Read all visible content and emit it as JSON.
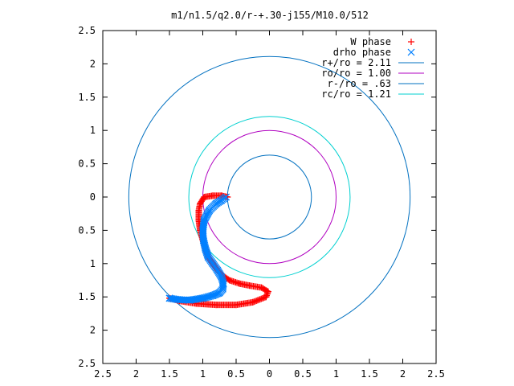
{
  "chart_data": {
    "type": "scatter",
    "title": "m1/n1.5/q2.0/r-+.30-j155/M10.0/512",
    "xlabel": "",
    "ylabel": "",
    "xlim": [
      -2.5,
      2.5
    ],
    "ylim": [
      -2.5,
      2.5
    ],
    "x_ticks": [
      -2.5,
      -2,
      -1.5,
      -1,
      -0.5,
      0,
      0.5,
      1,
      1.5,
      2,
      2.5
    ],
    "y_ticks": [
      -2.5,
      -2,
      -1.5,
      -1,
      -0.5,
      0,
      0.5,
      1,
      1.5,
      2,
      2.5
    ],
    "x_tick_labels": [
      "2.5",
      "2",
      "1.5",
      "1",
      "0.5",
      "0",
      "0.5",
      "1",
      "1.5",
      "2",
      "2.5"
    ],
    "y_tick_labels": [
      "2.5",
      "2",
      "1.5",
      "1",
      "0.5",
      "0",
      "0.5",
      "1",
      "1.5",
      "2",
      "2.5"
    ],
    "grid": false,
    "legend_position": "top-right",
    "legend": [
      {
        "label": "W phase",
        "kind": "plus",
        "color": "#ff0000"
      },
      {
        "label": "drho phase",
        "kind": "cross",
        "color": "#0080ff"
      },
      {
        "label": "r+/ro = 2.11",
        "kind": "line",
        "color": "#0070c0"
      },
      {
        "label": "ro/ro = 1.00",
        "kind": "line",
        "color": "#b000c0"
      },
      {
        "label": "r-/ro = .63",
        "kind": "line",
        "color": "#0070c0"
      },
      {
        "label": "rc/ro = 1.21",
        "kind": "line",
        "color": "#00d0d0"
      }
    ],
    "circles": [
      {
        "name": "r+/ro",
        "r": 2.11,
        "color": "#0070c0"
      },
      {
        "name": "ro/ro",
        "r": 1.0,
        "color": "#b000c0"
      },
      {
        "name": "r-/ro",
        "r": 0.63,
        "color": "#0070c0"
      },
      {
        "name": "rc/ro",
        "r": 1.21,
        "color": "#00d0d0"
      }
    ],
    "series": [
      {
        "name": "W phase",
        "marker": "plus",
        "color": "#ff0000",
        "x": [
          -0.63,
          -0.72,
          -0.85,
          -0.98,
          -1.04,
          -1.06,
          -1.06,
          -1.04,
          -1.0,
          -0.96,
          -0.92,
          -0.85,
          -0.78,
          -0.7,
          -0.6,
          -0.45,
          -0.3,
          -0.12,
          -0.02,
          -0.05,
          -0.25,
          -0.5,
          -0.8,
          -1.1,
          -1.35,
          -1.5
        ],
        "y": [
          0.0,
          0.02,
          0.02,
          0.0,
          -0.1,
          -0.2,
          -0.35,
          -0.5,
          -0.65,
          -0.78,
          -0.9,
          -1.0,
          -1.1,
          -1.18,
          -1.25,
          -1.3,
          -1.33,
          -1.36,
          -1.42,
          -1.5,
          -1.58,
          -1.62,
          -1.62,
          -1.6,
          -1.56,
          -1.52
        ]
      },
      {
        "name": "drho phase",
        "marker": "cross",
        "color": "#0080ff",
        "x": [
          -0.65,
          -0.72,
          -0.8,
          -0.9,
          -0.98,
          -1.0,
          -0.99,
          -0.96,
          -0.92,
          -0.85,
          -0.78,
          -0.72,
          -0.69,
          -0.7,
          -0.75,
          -0.85,
          -1.0,
          -1.2,
          -1.38,
          -1.5
        ],
        "y": [
          0.0,
          -0.05,
          -0.1,
          -0.2,
          -0.35,
          -0.5,
          -0.65,
          -0.78,
          -0.9,
          -1.0,
          -1.1,
          -1.2,
          -1.3,
          -1.38,
          -1.44,
          -1.48,
          -1.52,
          -1.55,
          -1.54,
          -1.52
        ]
      }
    ]
  }
}
